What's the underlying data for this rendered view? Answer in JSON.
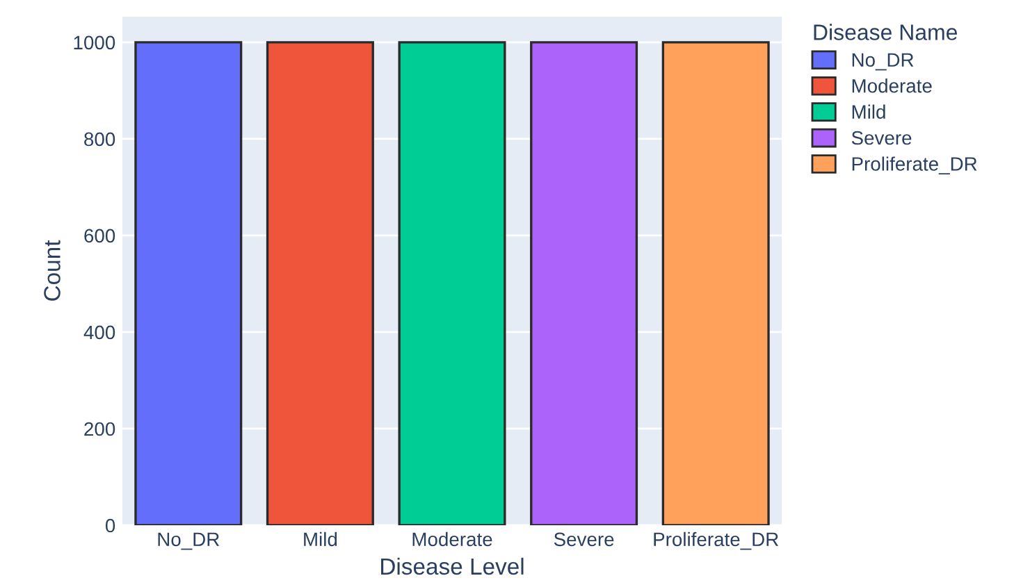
{
  "chart_data": {
    "type": "bar",
    "xlabel": "Disease Level",
    "ylabel": "Count",
    "legend_title": "Disease Name",
    "categories": [
      "No_DR",
      "Mild",
      "Moderate",
      "Severe",
      "Proliferate_DR"
    ],
    "series": [
      {
        "name": "No_DR",
        "color": "#636efa",
        "values": [
          1000,
          null,
          null,
          null,
          null
        ]
      },
      {
        "name": "Moderate",
        "color": "#ef553b",
        "values": [
          null,
          1000,
          null,
          null,
          null
        ]
      },
      {
        "name": "Mild",
        "color": "#00cc96",
        "values": [
          null,
          null,
          1000,
          null,
          null
        ]
      },
      {
        "name": "Severe",
        "color": "#ab63fa",
        "values": [
          null,
          null,
          null,
          1000,
          null
        ]
      },
      {
        "name": "Proliferate_DR",
        "color": "#ffa15a",
        "values": [
          null,
          null,
          null,
          null,
          1000
        ]
      }
    ],
    "ylim": [
      0,
      1053
    ],
    "yticks": [
      0,
      200,
      400,
      600,
      800,
      1000
    ],
    "grid": "y",
    "legend": "right"
  }
}
